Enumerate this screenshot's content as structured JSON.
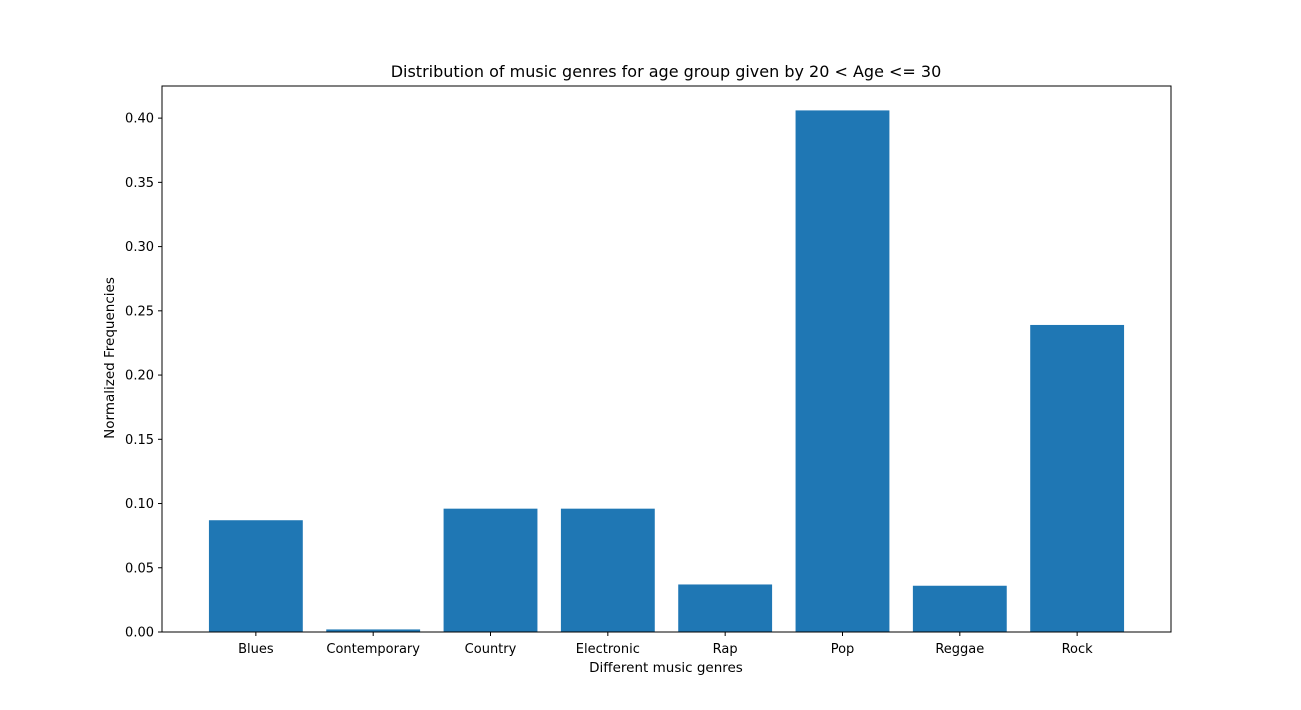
{
  "chart_data": {
    "type": "bar",
    "title": "Distribution of music genres for age group given by 20 < Age <= 30",
    "xlabel": "Different music genres",
    "ylabel": "Normalized Frequencies",
    "categories": [
      "Blues",
      "Contemporary",
      "Country",
      "Electronic",
      "Rap",
      "Pop",
      "Reggae",
      "Rock"
    ],
    "values": [
      0.087,
      0.002,
      0.096,
      0.096,
      0.037,
      0.406,
      0.036,
      0.239
    ],
    "ylim": [
      0,
      0.425
    ],
    "yticks": [
      "0.00",
      "0.05",
      "0.10",
      "0.15",
      "0.20",
      "0.25",
      "0.30",
      "0.35",
      "0.40"
    ],
    "bar_color": "#1f77b4",
    "grid": false,
    "legend": "none"
  }
}
